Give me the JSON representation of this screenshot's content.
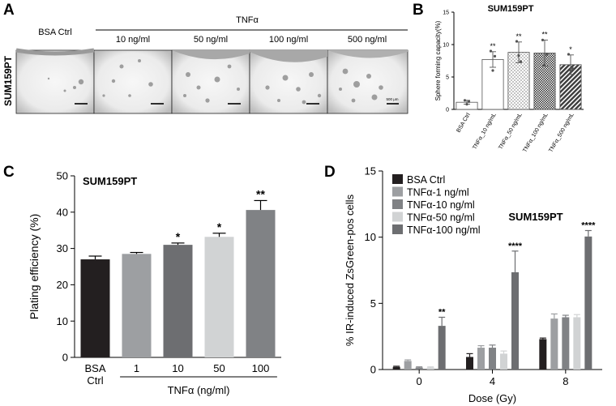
{
  "panels": {
    "A": {
      "letter": "A",
      "row_label": "SUM159PT",
      "ctrl_label": "BSA Ctrl",
      "group_label": "TNFα",
      "columns": [
        "10 ng/ml",
        "50 ng/ml",
        "100 ng/ml",
        "500 ng/ml"
      ],
      "scale_text": "500 μm"
    },
    "B": {
      "letter": "B"
    },
    "C": {
      "letter": "C"
    },
    "D": {
      "letter": "D"
    }
  },
  "chart_data": [
    {
      "id": "B",
      "type": "bar",
      "title": "SUM159PT",
      "ylabel": "Sphere forming capacity(%)",
      "xlabel": "",
      "ylim": [
        0,
        15
      ],
      "yticks": [
        0,
        5,
        10,
        15
      ],
      "categories": [
        "BSA Ctrl",
        "TNFα_10 ng/mL",
        "TNFα_50 ng/mL",
        "TNFα_100 ng/mL",
        "TNFα_500 ng/mL"
      ],
      "values": [
        1.1,
        7.7,
        8.8,
        8.7,
        6.9
      ],
      "errors": [
        0.3,
        1.2,
        1.6,
        2.0,
        1.5
      ],
      "points": [
        [
          1.4,
          0.8,
          1.2
        ],
        [
          9.0,
          6.0,
          8.2
        ],
        [
          10.5,
          8.3,
          7.4
        ],
        [
          10.7,
          6.8,
          8.5
        ],
        [
          8.5,
          6.0,
          6.3
        ]
      ],
      "significance": [
        "",
        "**",
        "**",
        "**",
        "*"
      ],
      "fills": [
        "#ffffff",
        "#ffffff",
        "dots",
        "checker",
        "hatch"
      ],
      "colors": {
        "bar_stroke": "#555555",
        "dots": "#9a9a9a",
        "checker": "#2a2a2a",
        "hatch": "#3c3c3c"
      }
    },
    {
      "id": "C",
      "type": "bar",
      "title": "SUM159PT",
      "ylabel": "Plating efficiency (%)",
      "xlabel": "TNFα (ng/ml)",
      "ylim": [
        0,
        50
      ],
      "yticks": [
        0,
        10,
        20,
        30,
        40,
        50
      ],
      "categories": [
        "BSA\nCtrl",
        "1",
        "10",
        "50",
        "100"
      ],
      "values": [
        27.0,
        28.5,
        31.0,
        33.2,
        40.6
      ],
      "errors": [
        0.9,
        0.4,
        0.5,
        1.0,
        2.6
      ],
      "significance": [
        "",
        "",
        "*",
        "*",
        "**"
      ],
      "colors": [
        "#231f20",
        "#9d9fa2",
        "#6d6e71",
        "#d1d3d4",
        "#808285"
      ]
    },
    {
      "id": "D",
      "type": "bar",
      "title": "SUM159PT",
      "ylabel": "% IR-induced ZsGreen-pos cells",
      "xlabel": "Dose (Gy)",
      "ylim": [
        0,
        15
      ],
      "yticks": [
        0,
        5,
        10,
        15
      ],
      "categories": [
        "0",
        "4",
        "8"
      ],
      "series": [
        {
          "name": "BSA Ctrl",
          "color": "#231f20",
          "values": [
            0.2,
            0.95,
            2.3
          ],
          "errors": [
            0.05,
            0.25,
            0.08
          ],
          "significance": [
            "",
            "",
            ""
          ]
        },
        {
          "name": "TNFα-1 ng/ml",
          "color": "#9d9fa2",
          "values": [
            0.65,
            1.65,
            3.85
          ],
          "errors": [
            0.08,
            0.15,
            0.35
          ],
          "significance": [
            "",
            "",
            ""
          ]
        },
        {
          "name": "TNFα-10 ng/ml",
          "color": "#808285",
          "values": [
            0.15,
            1.65,
            3.95
          ],
          "errors": [
            0.05,
            0.2,
            0.15
          ],
          "significance": [
            "",
            "",
            ""
          ]
        },
        {
          "name": "TNFα-50 ng/ml",
          "color": "#d1d3d4",
          "values": [
            0.15,
            1.2,
            3.95
          ],
          "errors": [
            0.05,
            0.2,
            0.2
          ],
          "significance": [
            "",
            "",
            ""
          ]
        },
        {
          "name": "TNFα-100 ng/ml",
          "color": "#6d6e71",
          "values": [
            3.3,
            7.35,
            10.05
          ],
          "errors": [
            0.65,
            1.6,
            0.45
          ],
          "significance": [
            "**",
            "****",
            "****"
          ]
        }
      ]
    }
  ]
}
